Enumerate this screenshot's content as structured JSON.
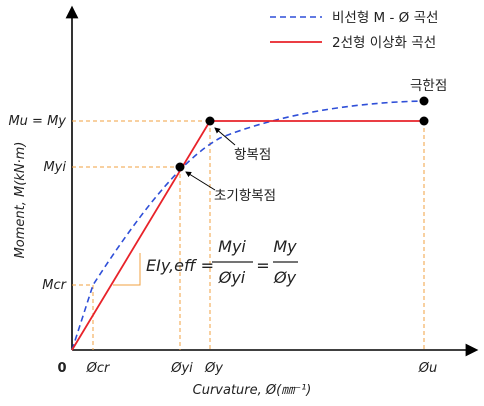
{
  "legend": {
    "nonlinear": {
      "label": "비선형 M - Ø 곡선",
      "color": "#2f4fd8"
    },
    "bilinear": {
      "label": "2선형 이상화 곡선",
      "color": "#e8232a"
    }
  },
  "axes": {
    "y_title": "Moment, M(kN·m)",
    "x_title": "Curvature, Ø(㎜⁻¹)",
    "origin": "0"
  },
  "y_ticks": {
    "mu_my": "Mu = My",
    "myi": "Myi",
    "mcr": "Mcr"
  },
  "x_ticks": {
    "phi_cr": "Øcr",
    "phi_yi": "Øyi",
    "phi_y": "Øy",
    "phi_u": "Øu"
  },
  "annotations": {
    "ultimate": "극한점",
    "yield": "항복점",
    "initial_yield": "초기항복점"
  },
  "formula": {
    "lhs": "EIy,eff =",
    "num1": "Myi",
    "den1": "Øyi",
    "eq": "=",
    "num2": "My",
    "den2": "Øy"
  },
  "colors": {
    "guide": "#f0a040",
    "axis": "#000000",
    "point": "#000000"
  }
}
